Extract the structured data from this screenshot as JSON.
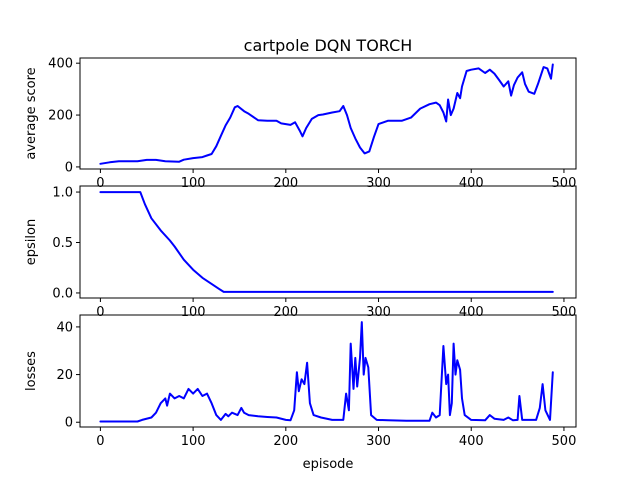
{
  "chart_data": [
    {
      "type": "line",
      "title": "cartpole DQN TORCH",
      "xlabel": "",
      "ylabel": "average score",
      "xlim": [
        -22,
        513
      ],
      "ylim": [
        -8,
        420
      ],
      "xticks": [
        0,
        100,
        200,
        300,
        400,
        500
      ],
      "yticks": [
        0,
        200,
        400
      ],
      "grid": false,
      "color": "#0000ff",
      "series": [
        {
          "points": [
            [
              0,
              12
            ],
            [
              10,
              18
            ],
            [
              20,
              22
            ],
            [
              40,
              22
            ],
            [
              50,
              27
            ],
            [
              60,
              27
            ],
            [
              70,
              22
            ],
            [
              85,
              20
            ],
            [
              90,
              28
            ],
            [
              100,
              34
            ],
            [
              110,
              38
            ],
            [
              115,
              44
            ],
            [
              120,
              50
            ],
            [
              125,
              80
            ],
            [
              130,
              120
            ],
            [
              135,
              160
            ],
            [
              140,
              190
            ],
            [
              145,
              230
            ],
            [
              148,
              235
            ],
            [
              155,
              215
            ],
            [
              160,
              205
            ],
            [
              170,
              180
            ],
            [
              180,
              178
            ],
            [
              190,
              178
            ],
            [
              195,
              168
            ],
            [
              205,
              162
            ],
            [
              210,
              172
            ],
            [
              215,
              140
            ],
            [
              218,
              118
            ],
            [
              222,
              150
            ],
            [
              228,
              185
            ],
            [
              235,
              200
            ],
            [
              240,
              202
            ],
            [
              250,
              210
            ],
            [
              258,
              215
            ],
            [
              262,
              235
            ],
            [
              266,
              200
            ],
            [
              270,
              150
            ],
            [
              275,
              110
            ],
            [
              280,
              75
            ],
            [
              285,
              52
            ],
            [
              290,
              60
            ],
            [
              295,
              115
            ],
            [
              300,
              165
            ],
            [
              310,
              178
            ],
            [
              325,
              178
            ],
            [
              335,
              190
            ],
            [
              345,
              225
            ],
            [
              355,
              242
            ],
            [
              362,
              248
            ],
            [
              366,
              238
            ],
            [
              370,
              210
            ],
            [
              373,
              175
            ],
            [
              375,
              260
            ],
            [
              378,
              200
            ],
            [
              381,
              225
            ],
            [
              385,
              285
            ],
            [
              388,
              265
            ],
            [
              390,
              310
            ],
            [
              395,
              370
            ],
            [
              400,
              375
            ],
            [
              408,
              380
            ],
            [
              415,
              362
            ],
            [
              420,
              375
            ],
            [
              425,
              360
            ],
            [
              430,
              335
            ],
            [
              435,
              310
            ],
            [
              440,
              330
            ],
            [
              443,
              275
            ],
            [
              446,
              315
            ],
            [
              450,
              345
            ],
            [
              455,
              365
            ],
            [
              458,
              320
            ],
            [
              462,
              290
            ],
            [
              468,
              282
            ],
            [
              472,
              320
            ],
            [
              478,
              385
            ],
            [
              482,
              380
            ],
            [
              486,
              340
            ],
            [
              488,
              395
            ]
          ]
        }
      ]
    },
    {
      "type": "line",
      "title": "",
      "xlabel": "",
      "ylabel": "epsilon",
      "xlim": [
        -22,
        513
      ],
      "ylim": [
        -0.05,
        1.06
      ],
      "xticks": [
        0,
        100,
        200,
        300,
        400,
        500
      ],
      "yticks": [
        0.0,
        0.5,
        1.0
      ],
      "grid": false,
      "color": "#0000ff",
      "series": [
        {
          "points": [
            [
              0,
              1.0
            ],
            [
              43,
              1.0
            ],
            [
              48,
              0.88
            ],
            [
              55,
              0.74
            ],
            [
              65,
              0.62
            ],
            [
              75,
              0.52
            ],
            [
              80,
              0.46
            ],
            [
              90,
              0.33
            ],
            [
              100,
              0.23
            ],
            [
              110,
              0.15
            ],
            [
              120,
              0.09
            ],
            [
              128,
              0.04
            ],
            [
              133,
              0.01
            ],
            [
              488,
              0.01
            ]
          ]
        }
      ]
    },
    {
      "type": "line",
      "title": "",
      "xlabel": "episode",
      "ylabel": "losses",
      "xlim": [
        -22,
        513
      ],
      "ylim": [
        -2,
        45
      ],
      "xticks": [
        0,
        100,
        200,
        300,
        400,
        500
      ],
      "yticks": [
        0,
        20,
        40
      ],
      "grid": false,
      "color": "#0000ff",
      "series": [
        {
          "points": [
            [
              0,
              0.3
            ],
            [
              40,
              0.3
            ],
            [
              45,
              1
            ],
            [
              55,
              2
            ],
            [
              60,
              4
            ],
            [
              65,
              8
            ],
            [
              70,
              10
            ],
            [
              72,
              7
            ],
            [
              75,
              12
            ],
            [
              80,
              10
            ],
            [
              85,
              11
            ],
            [
              90,
              10
            ],
            [
              95,
              14
            ],
            [
              100,
              12
            ],
            [
              105,
              14
            ],
            [
              110,
              11
            ],
            [
              115,
              12
            ],
            [
              120,
              8
            ],
            [
              125,
              3
            ],
            [
              130,
              1
            ],
            [
              135,
              3.5
            ],
            [
              138,
              2.5
            ],
            [
              142,
              4
            ],
            [
              148,
              3
            ],
            [
              152,
              6
            ],
            [
              155,
              4
            ],
            [
              160,
              3
            ],
            [
              170,
              2.5
            ],
            [
              180,
              2.2
            ],
            [
              190,
              2
            ],
            [
              200,
              1
            ],
            [
              205,
              0.8
            ],
            [
              209,
              5
            ],
            [
              212,
              21
            ],
            [
              214,
              13
            ],
            [
              217,
              18
            ],
            [
              220,
              16
            ],
            [
              223,
              25
            ],
            [
              226,
              8
            ],
            [
              230,
              3
            ],
            [
              238,
              2
            ],
            [
              250,
              1
            ],
            [
              262,
              1
            ],
            [
              265,
              12
            ],
            [
              268,
              5
            ],
            [
              270,
              33
            ],
            [
              273,
              14
            ],
            [
              275,
              27
            ],
            [
              277,
              15
            ],
            [
              280,
              27
            ],
            [
              282,
              42
            ],
            [
              284,
              20
            ],
            [
              286,
              27
            ],
            [
              289,
              23
            ],
            [
              292,
              3
            ],
            [
              298,
              1
            ],
            [
              310,
              0.8
            ],
            [
              330,
              0.6
            ],
            [
              355,
              0.6
            ],
            [
              358,
              4
            ],
            [
              362,
              2
            ],
            [
              366,
              3
            ],
            [
              370,
              32
            ],
            [
              373,
              16
            ],
            [
              375,
              20
            ],
            [
              377,
              3
            ],
            [
              379,
              8
            ],
            [
              381,
              33
            ],
            [
              383,
              20
            ],
            [
              385,
              26
            ],
            [
              388,
              22
            ],
            [
              390,
              10
            ],
            [
              393,
              3
            ],
            [
              400,
              1
            ],
            [
              415,
              0.8
            ],
            [
              420,
              3
            ],
            [
              425,
              1.5
            ],
            [
              435,
              1
            ],
            [
              440,
              2
            ],
            [
              445,
              0.8
            ],
            [
              450,
              1
            ],
            [
              452,
              11
            ],
            [
              455,
              1
            ],
            [
              470,
              1
            ],
            [
              474,
              6
            ],
            [
              477,
              16
            ],
            [
              480,
              5
            ],
            [
              485,
              1
            ],
            [
              488,
              21
            ]
          ]
        }
      ]
    }
  ]
}
